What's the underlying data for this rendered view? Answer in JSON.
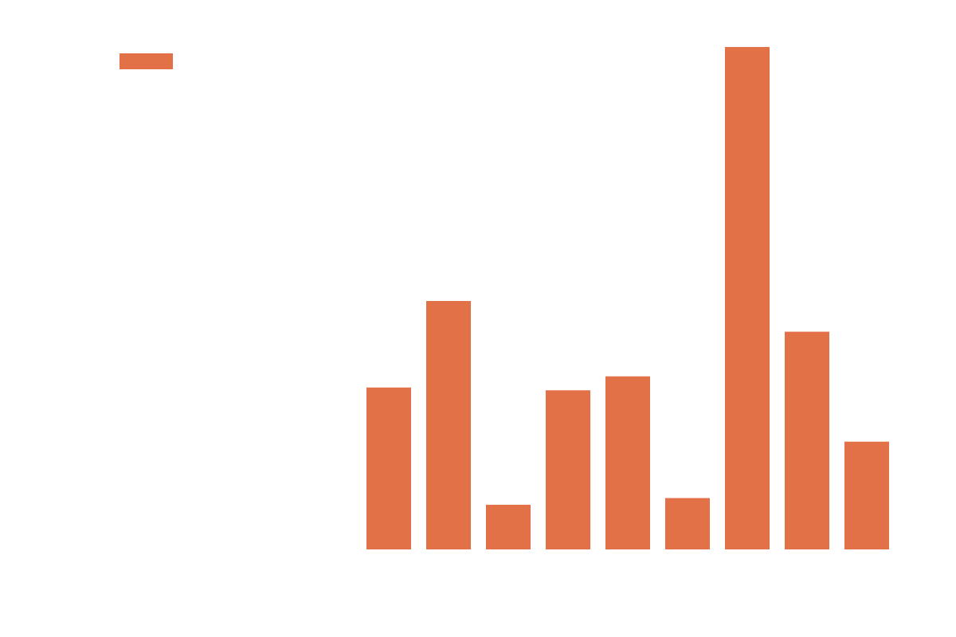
{
  "chart_data": {
    "type": "bar",
    "categories": [
      "",
      "",
      "",
      "",
      "",
      "",
      "",
      "",
      ""
    ],
    "series": [
      {
        "color": "#e37148",
        "values": [
          29.0,
          44.5,
          8.0,
          28.5,
          31.0,
          9.2,
          90.0,
          39.0,
          19.3
        ]
      }
    ],
    "ylim": [
      0,
      92
    ],
    "grid": false,
    "legend": {
      "position": "top-left"
    }
  }
}
